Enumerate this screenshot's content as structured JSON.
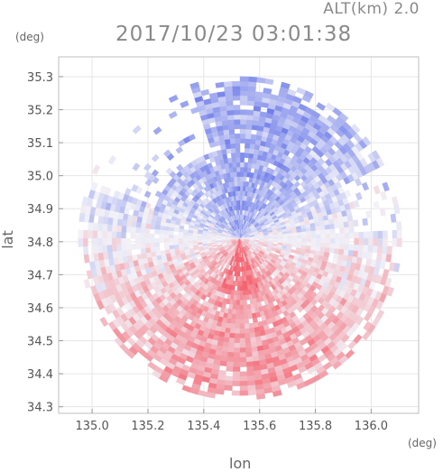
{
  "header": {
    "altitude_label": "ALT(km) 2.0",
    "timestamp": "2017/10/23 03:01:38"
  },
  "chart_data": {
    "type": "heatmap",
    "title": "2017/10/23 03:01:38",
    "xlabel": "lon",
    "ylabel": "lat",
    "x_unit": "(deg)",
    "y_unit": "(deg)",
    "xlim": [
      134.88,
      136.17
    ],
    "ylim": [
      34.28,
      35.36
    ],
    "x_ticks": [
      135.0,
      135.2,
      135.4,
      135.6,
      135.8,
      136.0
    ],
    "x_tick_labels": [
      "135.0",
      "135.2",
      "135.4",
      "135.6",
      "135.8",
      "136.0"
    ],
    "y_ticks": [
      34.3,
      34.4,
      34.5,
      34.6,
      34.7,
      34.8,
      34.9,
      35.0,
      35.1,
      35.2,
      35.3
    ],
    "y_tick_labels": [
      "34.3",
      "34.4",
      "34.5",
      "34.6",
      "34.7",
      "34.8",
      "34.9",
      "35.0",
      "35.1",
      "35.2",
      "35.3"
    ],
    "radar_center": {
      "lon": 135.53,
      "lat": 34.81
    },
    "radar_range_deg": 0.58,
    "colormap": {
      "negative": "#6070e8",
      "neutral": "#f2f2f8",
      "positive": "#f46470"
    },
    "grid": true,
    "legend": "none"
  }
}
